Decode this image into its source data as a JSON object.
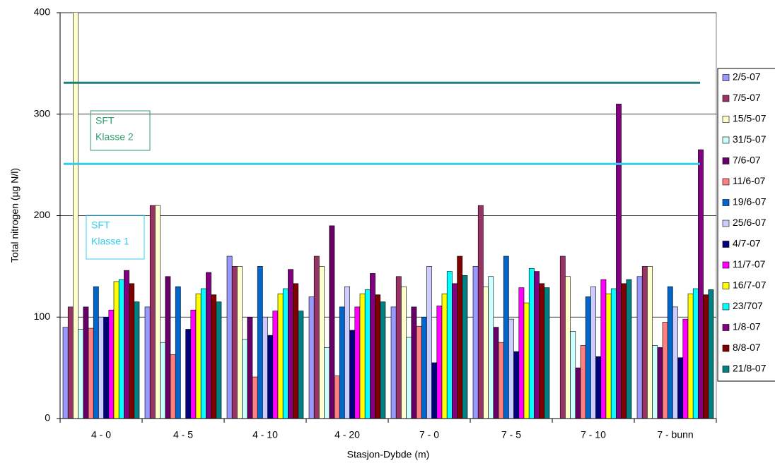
{
  "chart_data": {
    "type": "bar",
    "xlabel": "Stasjon-Dybde (m)",
    "ylabel": "Total nitrogen (µg N/l)",
    "categories": [
      "4 - 0",
      "4 - 5",
      "4 - 10",
      "4 - 20",
      "7 - 0",
      "7 - 5",
      "7 - 10",
      "7 - bunn"
    ],
    "ylim": [
      0,
      400
    ],
    "yticks": [
      0,
      100,
      200,
      300,
      400
    ],
    "grid": true,
    "legend": "right",
    "series": [
      {
        "name": "2/5-07",
        "color": "#9999ff",
        "values": [
          90,
          110,
          160,
          120,
          110,
          150,
          null,
          140
        ]
      },
      {
        "name": "7/5-07",
        "color": "#993366",
        "values": [
          110,
          210,
          150,
          160,
          140,
          210,
          160,
          150
        ]
      },
      {
        "name": "15/5-07",
        "color": "#ffffcc",
        "values": [
          410,
          210,
          150,
          150,
          130,
          130,
          140,
          150
        ]
      },
      {
        "name": "31/5-07",
        "color": "#ccffff",
        "values": [
          88,
          75,
          78,
          70,
          80,
          140,
          86,
          72
        ]
      },
      {
        "name": "7/6-07",
        "color": "#660066",
        "values": [
          110,
          140,
          100,
          190,
          110,
          90,
          50,
          70
        ]
      },
      {
        "name": "11/6-07",
        "color": "#ff8080",
        "values": [
          89,
          63,
          41,
          42,
          91,
          75,
          72,
          95
        ]
      },
      {
        "name": "19/6-07",
        "color": "#0066cc",
        "values": [
          130,
          130,
          150,
          110,
          100,
          160,
          120,
          130
        ]
      },
      {
        "name": "25/6-07",
        "color": "#ccccff",
        "values": [
          100,
          null,
          100,
          130,
          150,
          98,
          130,
          110
        ]
      },
      {
        "name": "4/7-07",
        "color": "#000080",
        "values": [
          100,
          88,
          82,
          87,
          55,
          66,
          61,
          60
        ]
      },
      {
        "name": "11/7-07",
        "color": "#ff00ff",
        "values": [
          107,
          107,
          106,
          110,
          111,
          129,
          137,
          98
        ]
      },
      {
        "name": "16/7-07",
        "color": "#ffff00",
        "values": [
          135,
          123,
          123,
          123,
          123,
          114,
          123,
          123
        ]
      },
      {
        "name": "23/707",
        "color": "#00ffff",
        "values": [
          137,
          128,
          128,
          127,
          145,
          148,
          128,
          128
        ]
      },
      {
        "name": "1/8-07",
        "color": "#800080",
        "values": [
          146,
          144,
          147,
          143,
          133,
          145,
          310,
          265
        ]
      },
      {
        "name": "8/8-07",
        "color": "#800000",
        "values": [
          133,
          122,
          133,
          122,
          160,
          133,
          133,
          122
        ]
      },
      {
        "name": "21/8-07",
        "color": "#008080",
        "values": [
          115,
          115,
          106,
          115,
          141,
          129,
          137,
          127
        ]
      }
    ],
    "reference_lines": [
      {
        "value": 331,
        "color": "#1f7f77",
        "label_color": "#2e9e6e",
        "label": [
          "SFT",
          "Klasse 2"
        ]
      },
      {
        "value": 251,
        "color": "#33ccee",
        "label_color": "#33ccee",
        "label": [
          "SFT",
          "Klasse 1"
        ]
      }
    ]
  }
}
